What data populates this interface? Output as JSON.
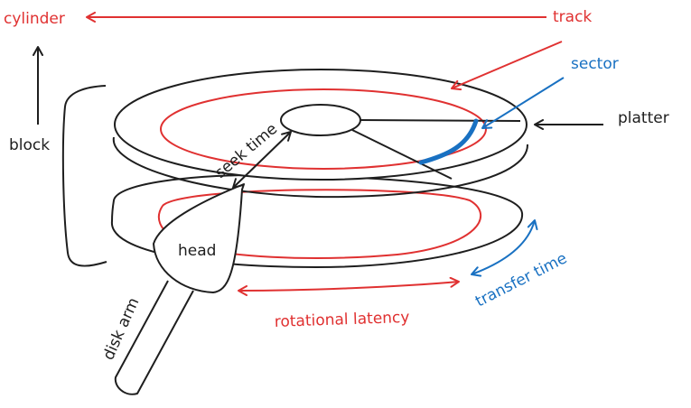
{
  "colors": {
    "red": "#e03131",
    "blue": "#1971c2",
    "black": "#1e1e1e"
  },
  "labels": {
    "cylinder": "cylinder",
    "track": "track",
    "sector": "sector",
    "platter": "platter",
    "block": "block",
    "seek_time": "seek time",
    "head": "head",
    "disk_arm": "disk arm",
    "rotational_latency": "rotational latency",
    "transfer_time": "transfer time"
  }
}
